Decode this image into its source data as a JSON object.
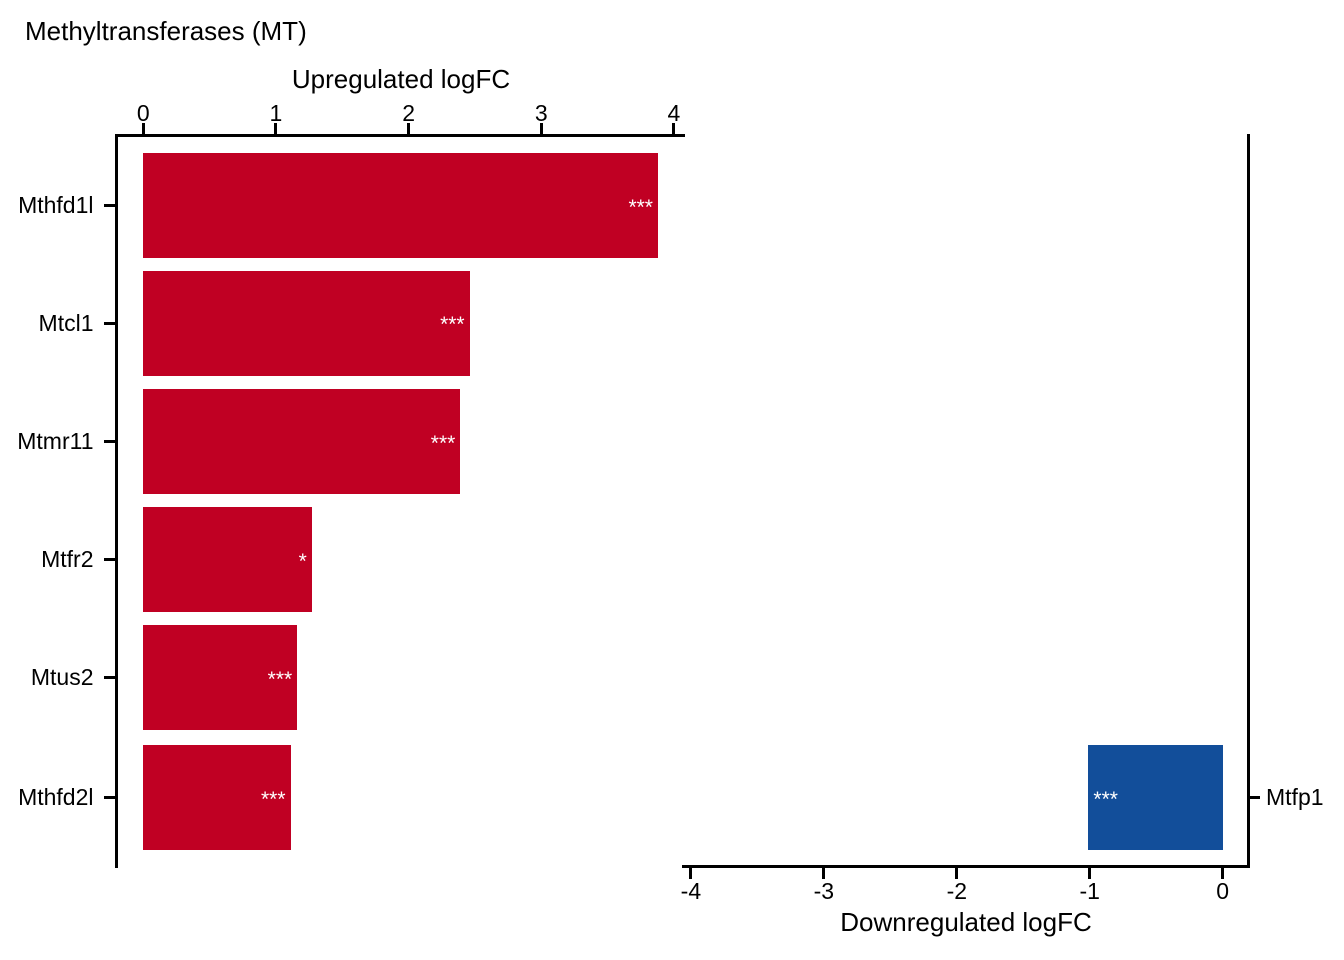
{
  "title": "Methyltransferases (MT)",
  "colors": {
    "upregulated_bar": "#C00023",
    "downregulated_bar": "#124E9A",
    "axis": "#000000",
    "significance_text": "#FFFFFF"
  },
  "chart_data": [
    {
      "type": "bar",
      "orientation": "horizontal",
      "panel": "upregulated",
      "xlabel": "Upregulated logFC",
      "axis_sides": {
        "x": "top",
        "y": "left"
      },
      "xlim": [
        0,
        4.08
      ],
      "xticks": [
        0,
        1,
        2,
        3,
        4
      ],
      "grid": false,
      "categories": [
        "Mthfd1l",
        "Mtcl1",
        "Mtmr11",
        "Mtfr2",
        "Mtus2",
        "Mthfd2l"
      ],
      "values": [
        3.88,
        2.46,
        2.39,
        1.27,
        1.16,
        1.11
      ],
      "significance": [
        "***",
        "***",
        "***",
        "*",
        "***",
        "***"
      ],
      "bar_color": "#C00023"
    },
    {
      "type": "bar",
      "orientation": "horizontal",
      "panel": "downregulated",
      "xlabel": "Downregulated logFC",
      "axis_sides": {
        "x": "bottom",
        "y": "right"
      },
      "xlim": [
        -4.07,
        0.19
      ],
      "xticks": [
        -4,
        -3,
        -2,
        -1,
        0
      ],
      "grid": false,
      "categories": [
        "Mtfp1"
      ],
      "values": [
        -1.01
      ],
      "significance": [
        "***"
      ],
      "bar_color": "#124E9A"
    }
  ]
}
